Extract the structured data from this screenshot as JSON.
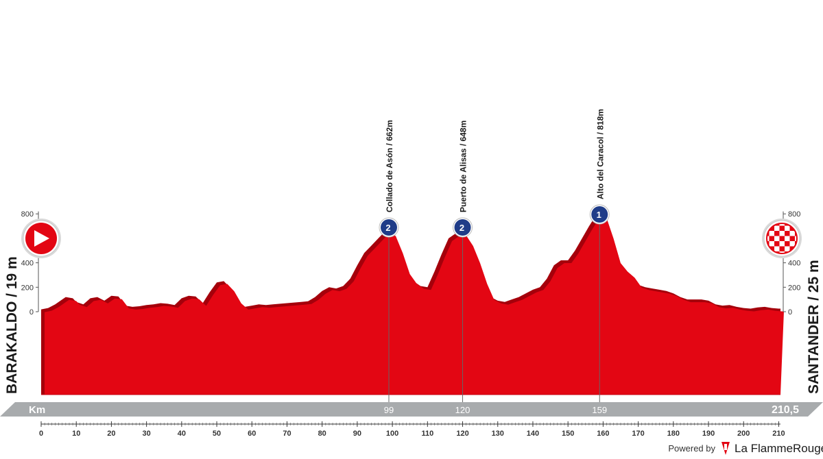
{
  "start_label": "BARAKALDO / 19 m",
  "finish_label": "SANTANDER / 25 m",
  "km_label": "Km",
  "total_distance": "210,5",
  "powered_by": "Powered by",
  "brand": "La FlammeRouge",
  "colors": {
    "profile_red": "#e30613",
    "profile_dark": "#a5000b",
    "ribbon_grey": "#a8abad",
    "climb_badge": "#1f3c88",
    "text": "#1a1a1a"
  },
  "climbs": [
    {
      "name": "Collado de Asón / 662m",
      "km": 99,
      "km_label": "99",
      "category": "2"
    },
    {
      "name": "Puerto de Alisas / 648m",
      "km": 120,
      "km_label": "120",
      "category": "2"
    },
    {
      "name": "Alto del Caracol / 818m",
      "km": 159,
      "km_label": "159",
      "category": "1"
    }
  ],
  "chart_data": {
    "type": "area",
    "xlabel": "Km",
    "ylabel": "",
    "xlim": [
      0,
      210.5
    ],
    "ylim": [
      0,
      800
    ],
    "x_ticks": [
      0,
      10,
      20,
      30,
      40,
      50,
      60,
      70,
      80,
      90,
      100,
      110,
      120,
      130,
      140,
      150,
      160,
      170,
      180,
      190,
      200,
      210
    ],
    "y_ticks": [
      0,
      200,
      400,
      600,
      800
    ],
    "grid": false,
    "series": [
      {
        "x": [
          0,
          2,
          4,
          6,
          7,
          9,
          10,
          12,
          14,
          16,
          18,
          20,
          22,
          24,
          26,
          28,
          30,
          32,
          34,
          36,
          38,
          40,
          42,
          44,
          46,
          48,
          50,
          52,
          54,
          56,
          58,
          60,
          62,
          64,
          66,
          68,
          70,
          72,
          74,
          76,
          78,
          80,
          82,
          84,
          86,
          88,
          90,
          92,
          94,
          96,
          98,
          99,
          100,
          102,
          104,
          106,
          108,
          110,
          112,
          114,
          116,
          118,
          120,
          122,
          124,
          126,
          128,
          130,
          132,
          134,
          136,
          138,
          140,
          142,
          144,
          146,
          148,
          150,
          152,
          154,
          156,
          158,
          159,
          160,
          162,
          164,
          166,
          168,
          170,
          172,
          174,
          176,
          178,
          180,
          182,
          184,
          186,
          188,
          190,
          192,
          194,
          196,
          198,
          200,
          202,
          204,
          206,
          208,
          210,
          210.5
        ],
        "values": [
          19,
          30,
          60,
          100,
          120,
          110,
          80,
          60,
          110,
          120,
          90,
          130,
          125,
          50,
          40,
          45,
          55,
          60,
          70,
          65,
          55,
          110,
          130,
          125,
          70,
          160,
          240,
          250,
          190,
          90,
          40,
          50,
          60,
          55,
          60,
          65,
          70,
          75,
          80,
          85,
          120,
          170,
          200,
          190,
          210,
          270,
          380,
          480,
          540,
          600,
          660,
          662,
          640,
          500,
          330,
          250,
          210,
          200,
          330,
          470,
          600,
          640,
          648,
          560,
          420,
          250,
          120,
          90,
          80,
          100,
          120,
          150,
          180,
          200,
          270,
          380,
          420,
          420,
          500,
          600,
          700,
          790,
          818,
          790,
          620,
          420,
          350,
          300,
          220,
          200,
          190,
          180,
          170,
          150,
          120,
          100,
          100,
          100,
          90,
          60,
          50,
          55,
          40,
          30,
          25,
          35,
          40,
          30,
          25,
          25
        ]
      }
    ]
  }
}
